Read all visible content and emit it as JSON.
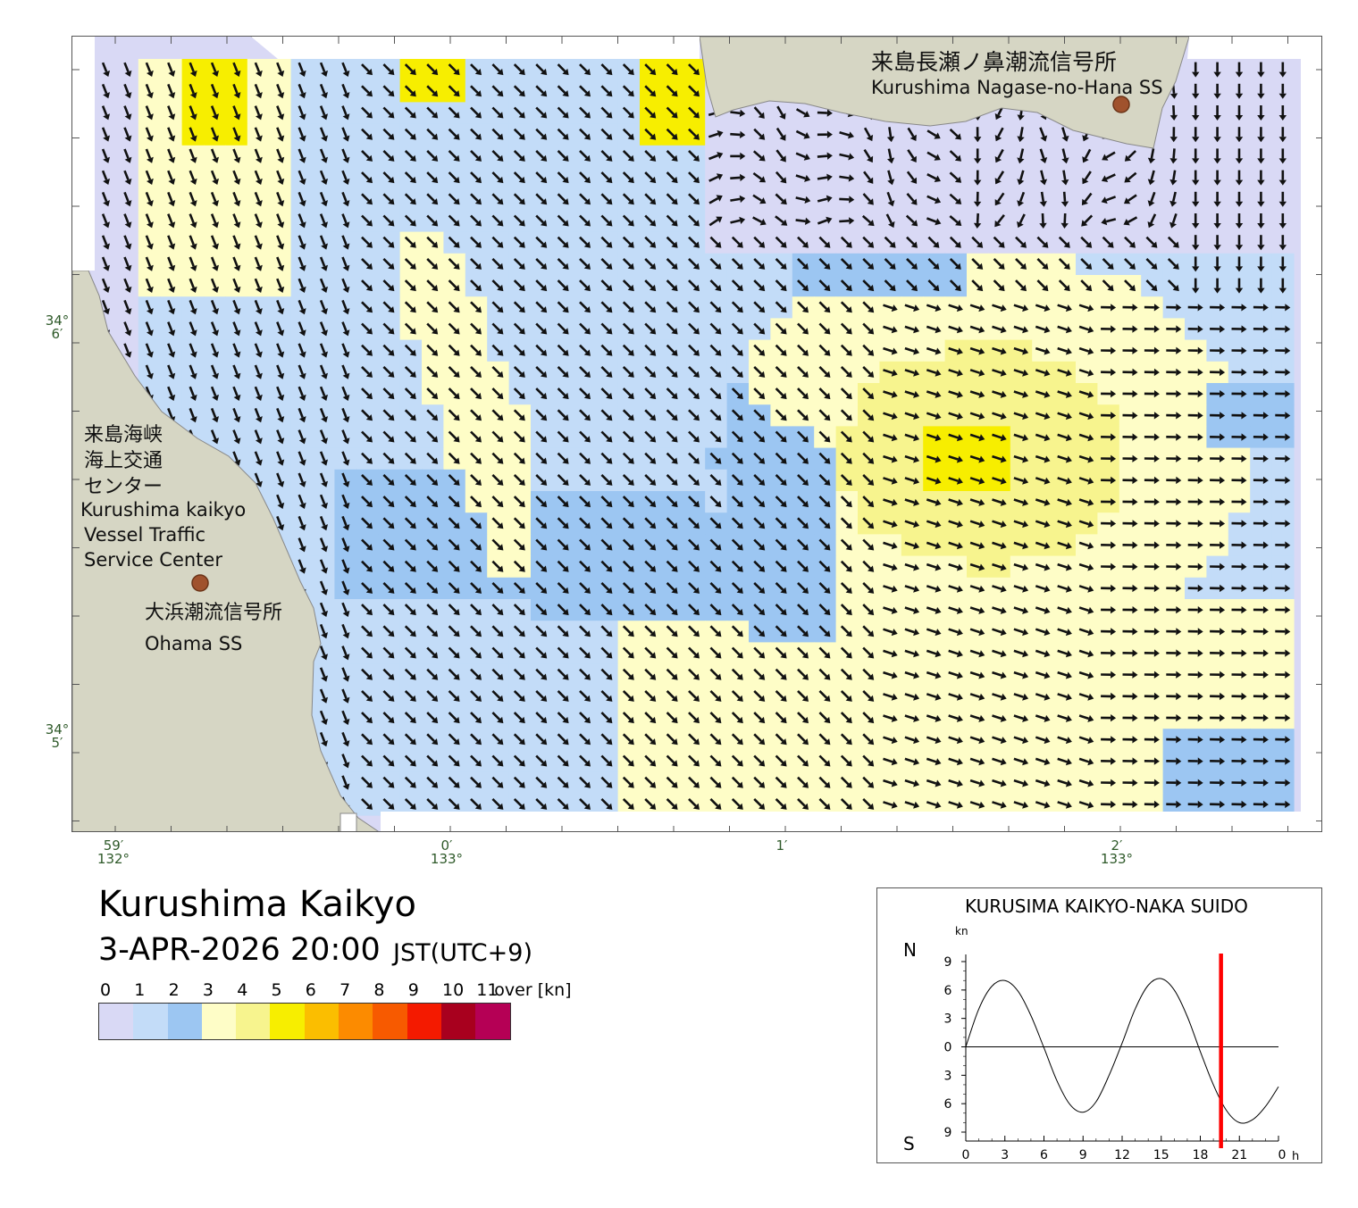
{
  "map": {
    "place_title": "Kurushima Kaikyo",
    "datetime": "3-APR-2026 20:00",
    "timezone": "JST(UTC+9)",
    "stations": [
      {
        "name_ja": "来島長瀬ノ鼻潮流信号所",
        "name_en": "Kurushima Nagase-no-Hana SS"
      },
      {
        "name_ja": "来島海峡海上交通センター",
        "name_ja_lines": [
          "来島海峡",
          "海上交通",
          "センター"
        ],
        "name_en_lines": [
          "Kurushima kaikyo",
          "Vessel Traffic",
          "Service Center"
        ]
      },
      {
        "name_ja": "大浜潮流信号所",
        "name_en": "Ohama SS"
      }
    ],
    "lat_labels": [
      {
        "deg": "34°",
        "min": "6′"
      },
      {
        "deg": "34°",
        "min": "5′"
      }
    ],
    "lon_labels": [
      {
        "min": "59′",
        "deg": "132°"
      },
      {
        "min": "0′",
        "deg": "133°"
      },
      {
        "min": "1′",
        "deg": ""
      },
      {
        "min": "2′",
        "deg": "133°"
      }
    ],
    "colors": {
      "land": "#d6d6c4",
      "station_dot": "#a0522d",
      "arrow": "#111111"
    }
  },
  "legend": {
    "labels": [
      "0",
      "1",
      "2",
      "3",
      "4",
      "5",
      "6",
      "7",
      "8",
      "9",
      "10",
      "11"
    ],
    "over_label": "over [kn]",
    "colors": [
      "#d9d9f5",
      "#c3dcf8",
      "#9cc6f2",
      "#fefdc7",
      "#f7f48e",
      "#f7ee00",
      "#fbbe00",
      "#fc8b00",
      "#f75a00",
      "#f41a00",
      "#a8001e",
      "#b50055"
    ]
  },
  "tide_chart": {
    "title": "KURUSIMA KAIKYO-NAKA SUIDO",
    "unit": "kn",
    "north_label": "N",
    "south_label": "S",
    "y_ticks": [
      "9",
      "6",
      "3",
      "0",
      "3",
      "6",
      "9"
    ],
    "x_ticks": [
      "0",
      "3",
      "6",
      "9",
      "12",
      "15",
      "18",
      "21",
      "0"
    ],
    "x_unit": "h",
    "current_hour": 20,
    "marker_color": "#ff0000"
  },
  "chart_data": {
    "type": "line",
    "title": "KURUSIMA KAIKYO-NAKA SUIDO",
    "ylabel": "kn",
    "xlabel": "h",
    "ylim": [
      -9,
      9
    ],
    "xlim": [
      0,
      24
    ],
    "series": [
      {
        "x": [
          0,
          1,
          2,
          3,
          4,
          5,
          6,
          7,
          8,
          9,
          10,
          11,
          12,
          13,
          14,
          15,
          16,
          17,
          18,
          19,
          20,
          21,
          22,
          23,
          24
        ],
        "y": [
          0,
          4.0,
          6.4,
          7.0,
          5.9,
          3.3,
          -0.1,
          -3.6,
          -6.1,
          -6.9,
          -5.8,
          -3.0,
          0.4,
          4.0,
          6.5,
          7.2,
          6.0,
          3.2,
          -0.5,
          -4.0,
          -6.7,
          -8.0,
          -7.7,
          -6.3,
          -4.2
        ]
      }
    ],
    "current_hour_marker": 20
  }
}
